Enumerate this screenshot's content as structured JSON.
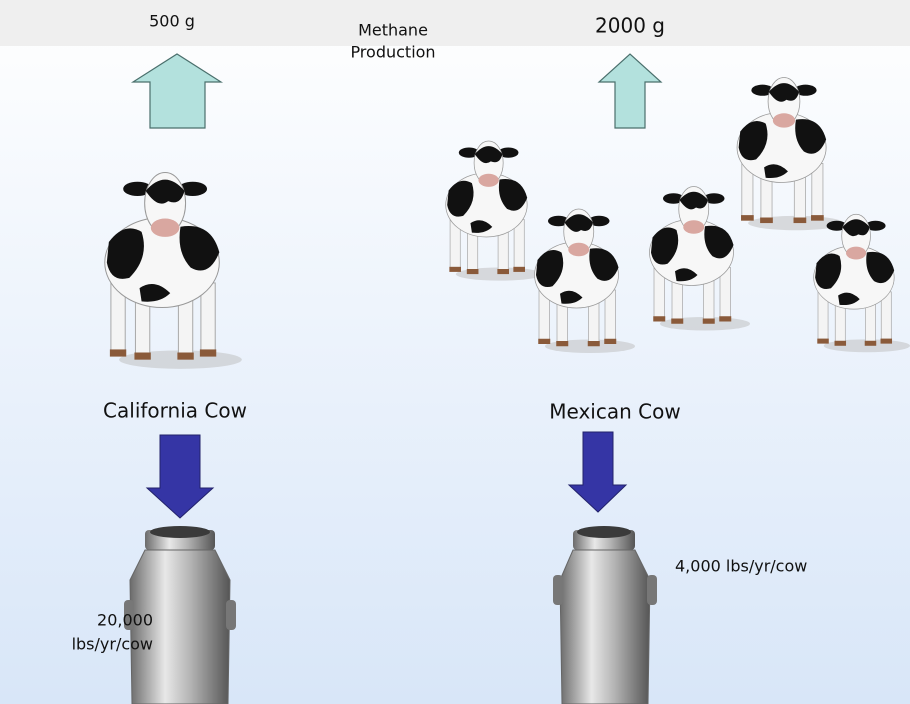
{
  "header": {
    "title_lines": [
      "Methane",
      "Production"
    ]
  },
  "panels": [
    {
      "methane": "500 g",
      "name": "California Cow",
      "milk_lines": [
        "20,000",
        "lbs/yr/cow"
      ]
    },
    {
      "methane": "2000 g",
      "name": "Mexican Cow",
      "milk_lines": [
        "4,000 lbs/yr/cow"
      ]
    }
  ]
}
